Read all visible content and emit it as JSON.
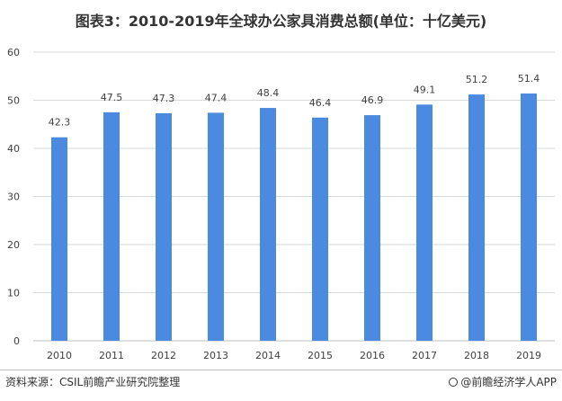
{
  "title": "图表3：2010-2019年全球办公家具消费总额(单位：十亿美元)",
  "footer": {
    "source": "资料来源：CSIL前瞻产业研究院整理",
    "brand": "@前瞻经济学人APP"
  },
  "colors": {
    "bar": "#4a8ae0",
    "grid": "#d9d9d9",
    "text": "#404040"
  },
  "chart_data": {
    "type": "bar",
    "title": "图表3：2010-2019年全球办公家具消费总额(单位：十亿美元)",
    "categories": [
      "2010",
      "2011",
      "2012",
      "2013",
      "2014",
      "2015",
      "2016",
      "2017",
      "2018",
      "2019"
    ],
    "values": [
      42.3,
      47.5,
      47.3,
      47.4,
      48.4,
      46.4,
      46.9,
      49.1,
      51.2,
      51.4
    ],
    "value_labels": [
      "42.3",
      "47.5",
      "47.3",
      "47.4",
      "48.4",
      "46.4",
      "46.9",
      "49.1",
      "51.2",
      "51.4"
    ],
    "ylim": [
      0,
      60
    ],
    "yticks": [
      "0",
      "10",
      "20",
      "30",
      "40",
      "50",
      "60"
    ],
    "grid": true,
    "legend": "none"
  }
}
